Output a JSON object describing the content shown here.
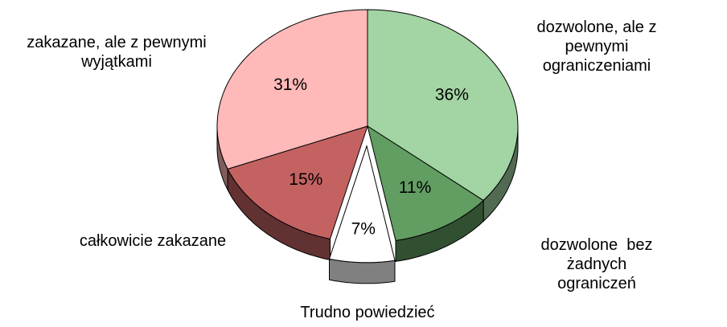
{
  "chart_data": {
    "type": "pie",
    "categories": [
      "dozwolone, ale z pewnymi\nograniczeniami",
      "dozwolone  bez żadnych\nograniczeń",
      "Trudno powiedzieć",
      "całkowicie zakazane",
      "zakazane, ale z pewnymi\nwyjątkami"
    ],
    "values": [
      36,
      11,
      7,
      15,
      31
    ],
    "value_labels": [
      "36%",
      "11%",
      "7%",
      "15%",
      "31%"
    ],
    "colors": [
      "#a3d4a3",
      "#629d62",
      "#ffffff",
      "#c46262",
      "#ffb9b9"
    ],
    "exploded": [
      false,
      false,
      true,
      false,
      false
    ]
  }
}
